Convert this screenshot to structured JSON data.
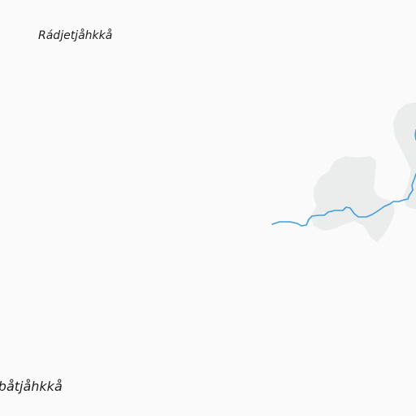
{
  "map": {
    "colors": {
      "background": "#fafafa",
      "terrain_shade": "#ebecec",
      "river": "#3f9fdc",
      "label_text": "#1e1e1e"
    },
    "labels": {
      "north_place": "Rádjetjåhkkå",
      "south_place": "obåtjåhkkå"
    },
    "features": [
      {
        "name": "glacier-area",
        "kind": "terrain-shade"
      },
      {
        "name": "river",
        "kind": "waterway"
      }
    ]
  }
}
